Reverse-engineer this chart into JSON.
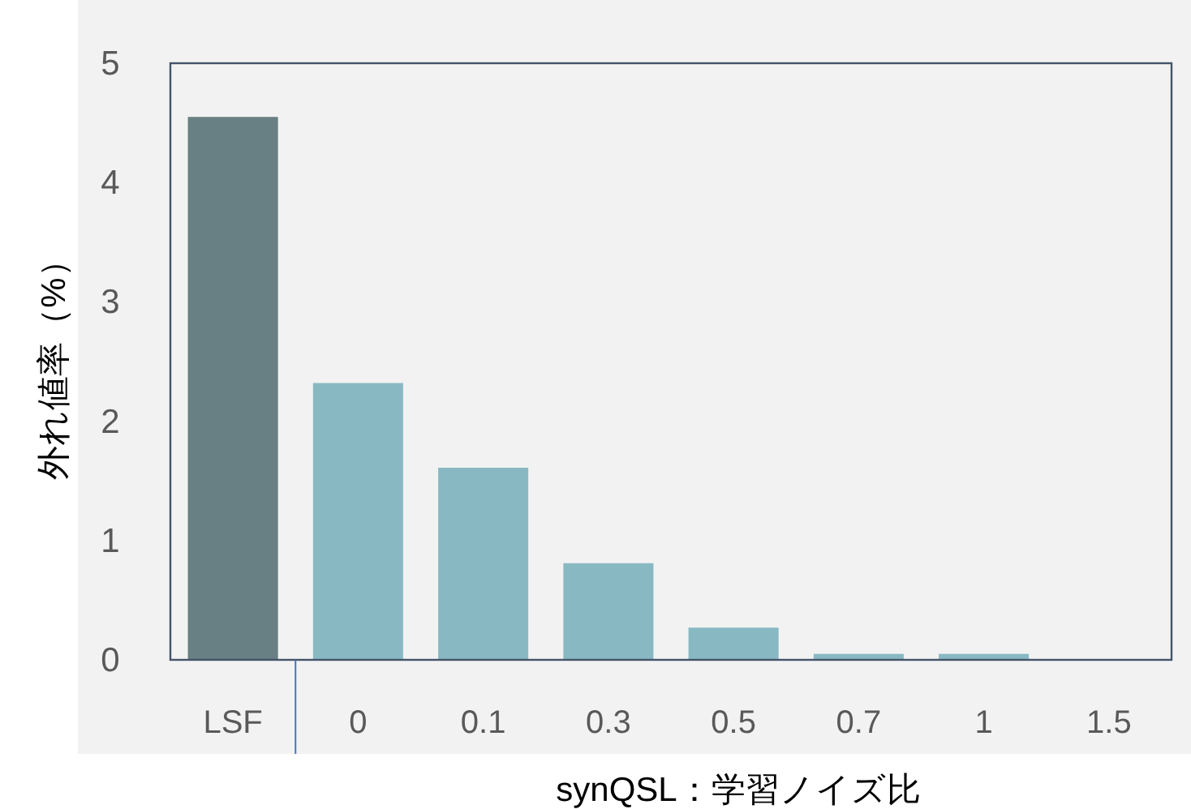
{
  "chart_data": {
    "type": "bar",
    "ylabel": "外れ値率（%）",
    "xlabel": "synQSL：学習ノイズ比",
    "categories": [
      "LSF",
      "0",
      "0.1",
      "0.3",
      "0.5",
      "0.7",
      "1",
      "1.5"
    ],
    "values": [
      4.55,
      2.32,
      1.61,
      0.81,
      0.27,
      0.05,
      0.05,
      0
    ],
    "colors": [
      "#687f83",
      "#88b9c3",
      "#88b9c3",
      "#88b9c3",
      "#88b9c3",
      "#88b9c3",
      "#88b9c3",
      "#88b9c3"
    ],
    "ylim": [
      0,
      5
    ],
    "yticks": [
      0,
      1,
      2,
      3,
      4,
      5
    ],
    "grid": false
  }
}
